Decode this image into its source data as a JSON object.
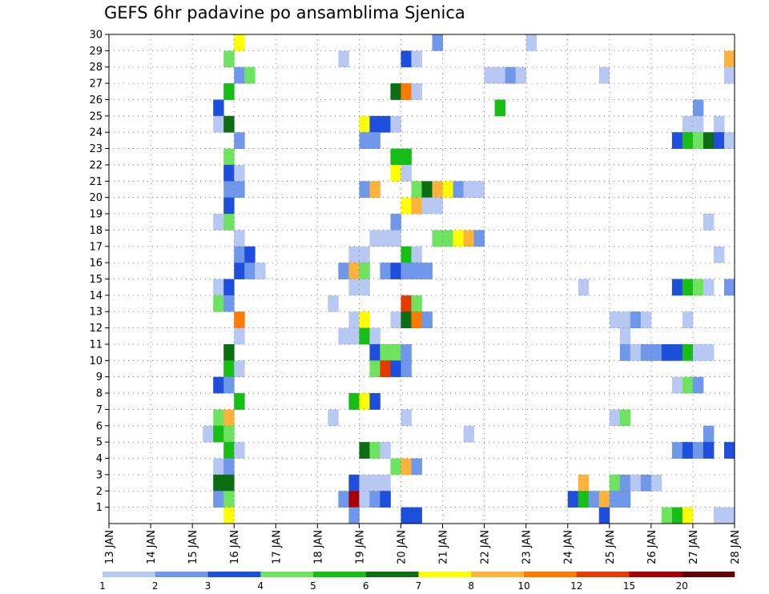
{
  "chart_data": {
    "type": "heatmap",
    "title": "GEFS 6hr padavine po ansamblima Sjenica",
    "x_tick_labels": [
      "13 JAN",
      "14 JAN",
      "15 JAN",
      "16 JAN",
      "17 JAN",
      "18 JAN",
      "19 JAN",
      "20 JAN",
      "21 JAN",
      "22 JAN",
      "23 JAN",
      "24 JAN",
      "25 JAN",
      "26 JAN",
      "27 JAN",
      "28 JAN"
    ],
    "x_range": [
      0,
      60
    ],
    "y_tick_labels": [
      "1",
      "2",
      "3",
      "4",
      "5",
      "6",
      "7",
      "8",
      "9",
      "10",
      "11",
      "12",
      "13",
      "14",
      "15",
      "16",
      "17",
      "18",
      "19",
      "20",
      "21",
      "22",
      "23",
      "24",
      "25",
      "26",
      "27",
      "28",
      "29",
      "30"
    ],
    "y_range": [
      0,
      30
    ],
    "grid": true,
    "colorbar": {
      "labels": [
        "1",
        "2",
        "3",
        "4",
        "5",
        "6",
        "7",
        "8",
        "10",
        "12",
        "15",
        "20"
      ],
      "colors": [
        "#b7c9f2",
        "#6f97ea",
        "#1d4fdc",
        "#6ee35f",
        "#16be16",
        "#0b6e12",
        "#ffff00",
        "#ffb23a",
        "#ff7a00",
        "#e53a00",
        "#a80000",
        "#660000"
      ]
    },
    "cells": [
      [
        12,
        30,
        6
      ],
      [
        31,
        30,
        1
      ],
      [
        40,
        30,
        0
      ],
      [
        11,
        29,
        3
      ],
      [
        22,
        29,
        0
      ],
      [
        28,
        29,
        2
      ],
      [
        29,
        29,
        0
      ],
      [
        59,
        29,
        7
      ],
      [
        12,
        28,
        1
      ],
      [
        13,
        28,
        3
      ],
      [
        36,
        28,
        0
      ],
      [
        37,
        28,
        0
      ],
      [
        38,
        28,
        1
      ],
      [
        39,
        28,
        0
      ],
      [
        47,
        28,
        0
      ],
      [
        59,
        28,
        0
      ],
      [
        11,
        27,
        4
      ],
      [
        27,
        27,
        5
      ],
      [
        28,
        27,
        8
      ],
      [
        29,
        27,
        0
      ],
      [
        10,
        26,
        2
      ],
      [
        37,
        26,
        4
      ],
      [
        56,
        26,
        1
      ],
      [
        10,
        25,
        0
      ],
      [
        11,
        25,
        5
      ],
      [
        24,
        25,
        6
      ],
      [
        25,
        25,
        2
      ],
      [
        26,
        25,
        2
      ],
      [
        27,
        25,
        0
      ],
      [
        55,
        25,
        0
      ],
      [
        56,
        25,
        0
      ],
      [
        58,
        25,
        0
      ],
      [
        12,
        24,
        1
      ],
      [
        24,
        24,
        1
      ],
      [
        25,
        24,
        1
      ],
      [
        54,
        24,
        2
      ],
      [
        55,
        24,
        4
      ],
      [
        56,
        24,
        3
      ],
      [
        57,
        24,
        5
      ],
      [
        58,
        24,
        2
      ],
      [
        59,
        24,
        0
      ],
      [
        11,
        23,
        3
      ],
      [
        27,
        23,
        4
      ],
      [
        28,
        23,
        4
      ],
      [
        11,
        22,
        2
      ],
      [
        12,
        22,
        0
      ],
      [
        27,
        22,
        6
      ],
      [
        28,
        22,
        0
      ],
      [
        11,
        21,
        1
      ],
      [
        12,
        21,
        1
      ],
      [
        24,
        21,
        1
      ],
      [
        25,
        21,
        7
      ],
      [
        29,
        21,
        3
      ],
      [
        30,
        21,
        5
      ],
      [
        31,
        21,
        7
      ],
      [
        32,
        21,
        6
      ],
      [
        33,
        21,
        1
      ],
      [
        34,
        21,
        0
      ],
      [
        35,
        21,
        0
      ],
      [
        11,
        20,
        2
      ],
      [
        28,
        20,
        6
      ],
      [
        29,
        20,
        7
      ],
      [
        30,
        20,
        0
      ],
      [
        31,
        20,
        0
      ],
      [
        10,
        19,
        0
      ],
      [
        11,
        19,
        3
      ],
      [
        27,
        19,
        1
      ],
      [
        57,
        19,
        0
      ],
      [
        12,
        18,
        0
      ],
      [
        25,
        18,
        0
      ],
      [
        26,
        18,
        0
      ],
      [
        27,
        18,
        0
      ],
      [
        31,
        18,
        3
      ],
      [
        32,
        18,
        3
      ],
      [
        33,
        18,
        6
      ],
      [
        34,
        18,
        7
      ],
      [
        35,
        18,
        1
      ],
      [
        12,
        17,
        1
      ],
      [
        13,
        17,
        2
      ],
      [
        23,
        17,
        0
      ],
      [
        24,
        17,
        0
      ],
      [
        28,
        17,
        4
      ],
      [
        29,
        17,
        0
      ],
      [
        58,
        17,
        0
      ],
      [
        12,
        16,
        2
      ],
      [
        13,
        16,
        1
      ],
      [
        14,
        16,
        0
      ],
      [
        22,
        16,
        1
      ],
      [
        23,
        16,
        7
      ],
      [
        24,
        16,
        3
      ],
      [
        26,
        16,
        1
      ],
      [
        27,
        16,
        2
      ],
      [
        28,
        16,
        1
      ],
      [
        29,
        16,
        1
      ],
      [
        30,
        16,
        1
      ],
      [
        10,
        15,
        0
      ],
      [
        11,
        15,
        2
      ],
      [
        23,
        15,
        0
      ],
      [
        24,
        15,
        0
      ],
      [
        45,
        15,
        0
      ],
      [
        54,
        15,
        2
      ],
      [
        55,
        15,
        4
      ],
      [
        56,
        15,
        3
      ],
      [
        57,
        15,
        0
      ],
      [
        59,
        15,
        1
      ],
      [
        10,
        14,
        3
      ],
      [
        11,
        14,
        1
      ],
      [
        21,
        14,
        0
      ],
      [
        28,
        14,
        9
      ],
      [
        29,
        14,
        3
      ],
      [
        12,
        13,
        8
      ],
      [
        23,
        13,
        0
      ],
      [
        24,
        13,
        6
      ],
      [
        27,
        13,
        0
      ],
      [
        28,
        13,
        5
      ],
      [
        29,
        13,
        8
      ],
      [
        30,
        13,
        1
      ],
      [
        48,
        13,
        0
      ],
      [
        49,
        13,
        0
      ],
      [
        50,
        13,
        1
      ],
      [
        51,
        13,
        0
      ],
      [
        55,
        13,
        0
      ],
      [
        12,
        12,
        0
      ],
      [
        22,
        12,
        0
      ],
      [
        23,
        12,
        0
      ],
      [
        24,
        12,
        4
      ],
      [
        25,
        12,
        0
      ],
      [
        49,
        12,
        0
      ],
      [
        11,
        11,
        5
      ],
      [
        25,
        11,
        2
      ],
      [
        26,
        11,
        3
      ],
      [
        27,
        11,
        3
      ],
      [
        28,
        11,
        1
      ],
      [
        49,
        11,
        1
      ],
      [
        50,
        11,
        0
      ],
      [
        51,
        11,
        1
      ],
      [
        52,
        11,
        1
      ],
      [
        53,
        11,
        2
      ],
      [
        54,
        11,
        2
      ],
      [
        55,
        11,
        4
      ],
      [
        56,
        11,
        0
      ],
      [
        57,
        11,
        0
      ],
      [
        11,
        10,
        4
      ],
      [
        12,
        10,
        0
      ],
      [
        25,
        10,
        3
      ],
      [
        26,
        10,
        9
      ],
      [
        27,
        10,
        2
      ],
      [
        28,
        10,
        1
      ],
      [
        10,
        9,
        2
      ],
      [
        11,
        9,
        1
      ],
      [
        54,
        9,
        0
      ],
      [
        55,
        9,
        3
      ],
      [
        56,
        9,
        1
      ],
      [
        12,
        8,
        4
      ],
      [
        23,
        8,
        4
      ],
      [
        24,
        8,
        6
      ],
      [
        25,
        8,
        2
      ],
      [
        10,
        7,
        3
      ],
      [
        11,
        7,
        7
      ],
      [
        21,
        7,
        0
      ],
      [
        28,
        7,
        0
      ],
      [
        48,
        7,
        0
      ],
      [
        49,
        7,
        3
      ],
      [
        9,
        6,
        0
      ],
      [
        10,
        6,
        4
      ],
      [
        11,
        6,
        3
      ],
      [
        34,
        6,
        0
      ],
      [
        57,
        6,
        1
      ],
      [
        11,
        5,
        4
      ],
      [
        12,
        5,
        0
      ],
      [
        24,
        5,
        5
      ],
      [
        25,
        5,
        3
      ],
      [
        26,
        5,
        0
      ],
      [
        54,
        5,
        1
      ],
      [
        55,
        5,
        2
      ],
      [
        56,
        5,
        1
      ],
      [
        57,
        5,
        2
      ],
      [
        59,
        5,
        2
      ],
      [
        10,
        4,
        0
      ],
      [
        11,
        4,
        1
      ],
      [
        27,
        4,
        3
      ],
      [
        28,
        4,
        7
      ],
      [
        29,
        4,
        1
      ],
      [
        10,
        3,
        5
      ],
      [
        11,
        3,
        5
      ],
      [
        23,
        3,
        2
      ],
      [
        24,
        3,
        0
      ],
      [
        25,
        3,
        0
      ],
      [
        26,
        3,
        0
      ],
      [
        45,
        3,
        7
      ],
      [
        48,
        3,
        3
      ],
      [
        49,
        3,
        1
      ],
      [
        50,
        3,
        0
      ],
      [
        51,
        3,
        1
      ],
      [
        52,
        3,
        0
      ],
      [
        10,
        2,
        1
      ],
      [
        11,
        2,
        3
      ],
      [
        22,
        2,
        1
      ],
      [
        23,
        2,
        10
      ],
      [
        24,
        2,
        0
      ],
      [
        25,
        2,
        1
      ],
      [
        26,
        2,
        2
      ],
      [
        44,
        2,
        2
      ],
      [
        45,
        2,
        4
      ],
      [
        46,
        2,
        1
      ],
      [
        47,
        2,
        7
      ],
      [
        48,
        2,
        1
      ],
      [
        49,
        2,
        1
      ],
      [
        11,
        1,
        6
      ],
      [
        23,
        1,
        1
      ],
      [
        28,
        1,
        2
      ],
      [
        29,
        1,
        2
      ],
      [
        47,
        1,
        2
      ],
      [
        53,
        1,
        3
      ],
      [
        54,
        1,
        4
      ],
      [
        55,
        1,
        6
      ],
      [
        58,
        1,
        0
      ],
      [
        59,
        1,
        0
      ]
    ]
  }
}
